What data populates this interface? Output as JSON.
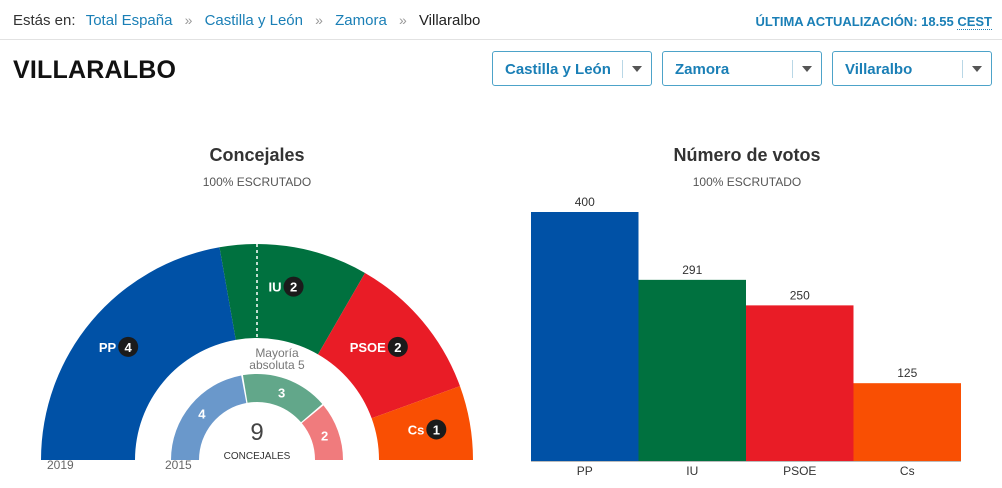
{
  "breadcrumb": {
    "lead": "Estás en:",
    "items": [
      "Total España",
      "Castilla y León",
      "Zamora"
    ],
    "separator": "»",
    "current": "Villaralbo"
  },
  "update": {
    "label": "ÚLTIMA ACTUALIZACIÓN:",
    "time": "18.55",
    "tz": "CEST"
  },
  "page_title": "VILLARALBO",
  "selects": [
    {
      "value": "Castilla y León"
    },
    {
      "value": "Zamora"
    },
    {
      "value": "Villaralbo"
    }
  ],
  "colors": {
    "PP": "#0051a6",
    "IU": "#00713f",
    "PSOE": "#e91c26",
    "Cs": "#f94f03",
    "PP_2015": "#6a98cb",
    "IU_2015": "#62a78a",
    "PSOE_2015": "#f07b7d",
    "badge": "#1b1b1b"
  },
  "chart_data": [
    {
      "type": "pie",
      "title": "Concejales",
      "subtitle": "100% ESCRUTADO",
      "series": [
        {
          "name": "2019",
          "categories": [
            "PP",
            "IU",
            "PSOE",
            "Cs"
          ],
          "values": [
            4,
            2,
            2,
            1
          ]
        },
        {
          "name": "2015",
          "categories": [
            "PP",
            "IU",
            "PSOE"
          ],
          "values": [
            4,
            3,
            2
          ]
        }
      ],
      "total": 9,
      "total_label": "CONCEJALES",
      "majority": [
        "Mayoría",
        "absoluta 5"
      ]
    },
    {
      "type": "bar",
      "title": "Número de votos",
      "subtitle": "100% ESCRUTADO",
      "categories": [
        "PP",
        "IU",
        "PSOE",
        "Cs"
      ],
      "values": [
        400,
        291,
        250,
        125
      ],
      "ylim": [
        0,
        400
      ]
    }
  ]
}
